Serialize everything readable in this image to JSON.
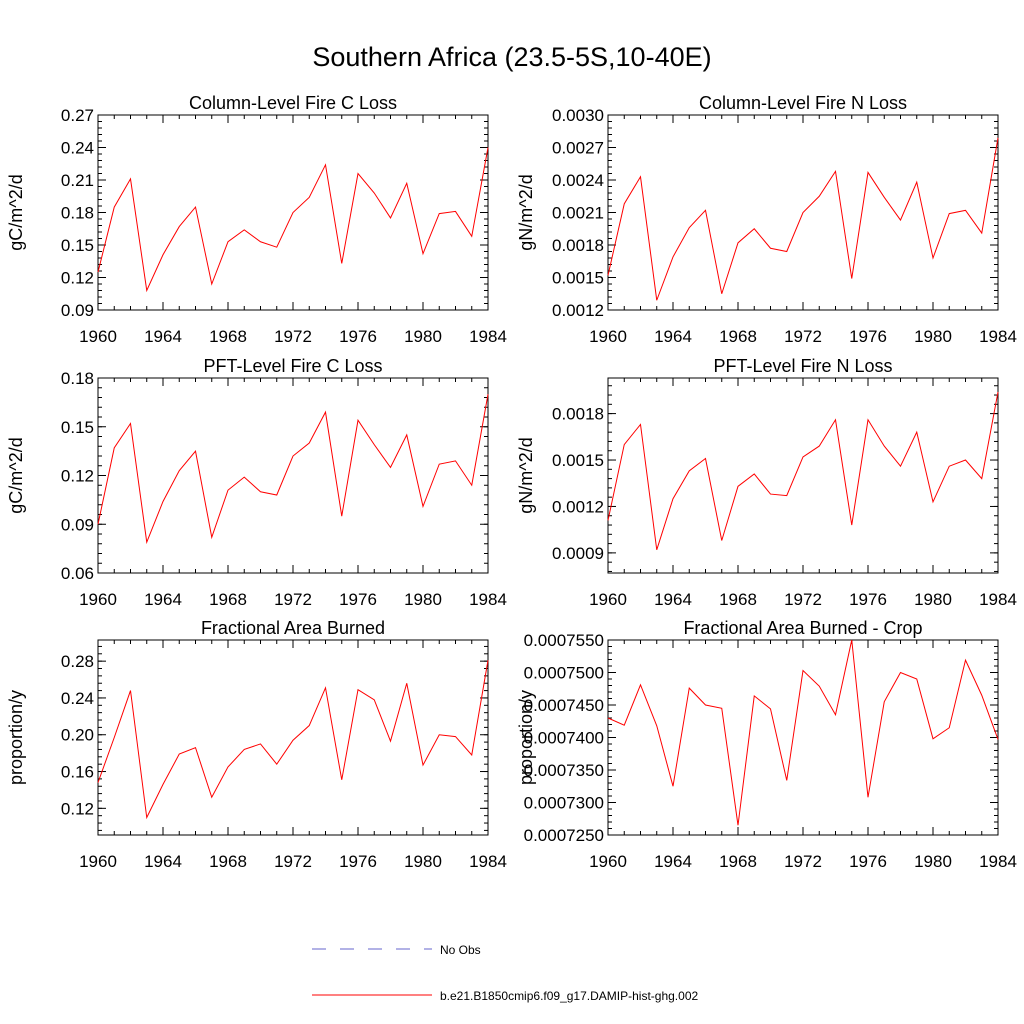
{
  "figure": {
    "title": "Southern Africa (23.5-5S,10-40E)",
    "legend": [
      {
        "label": "No Obs",
        "color": "#6666cc",
        "style": "dashed"
      },
      {
        "label": "b.e21.B1850cmip6.f09_g17.DAMIP-hist-ghg.002",
        "color": "#ff0000",
        "style": "solid"
      }
    ]
  },
  "chart_data": [
    {
      "type": "line",
      "title": "Column-Level Fire C Loss",
      "ylabel": "gC/m^2/d",
      "xlim": [
        1960,
        1984
      ],
      "ylim": [
        0.09,
        0.27
      ],
      "xticks": [
        "1960",
        "1964",
        "1968",
        "1972",
        "1976",
        "1980",
        "1984"
      ],
      "yticks": [
        0.09,
        0.12,
        0.15,
        0.18,
        0.21,
        0.24,
        0.27
      ],
      "ytick_labels": [
        "0.09",
        "0.12",
        "0.15",
        "0.18",
        "0.21",
        "0.24",
        "0.27"
      ],
      "grid": false,
      "series": [
        {
          "name": "b.e21.B1850cmip6.f09_g17.DAMIP-hist-ghg.002",
          "color": "#ff0000",
          "x": [
            1960,
            1961,
            1962,
            1963,
            1964,
            1965,
            1966,
            1967,
            1968,
            1969,
            1970,
            1971,
            1972,
            1973,
            1974,
            1975,
            1976,
            1977,
            1978,
            1979,
            1980,
            1981,
            1982,
            1983,
            1984
          ],
          "y": [
            0.125,
            0.185,
            0.211,
            0.108,
            0.141,
            0.167,
            0.185,
            0.114,
            0.153,
            0.164,
            0.153,
            0.148,
            0.18,
            0.194,
            0.224,
            0.133,
            0.216,
            0.198,
            0.175,
            0.207,
            0.142,
            0.179,
            0.181,
            0.158,
            0.24
          ]
        }
      ]
    },
    {
      "type": "line",
      "title": "Column-Level Fire N Loss",
      "ylabel": "gN/m^2/d",
      "xlim": [
        1960,
        1984
      ],
      "ylim": [
        0.0012,
        0.003
      ],
      "xticks": [
        "1960",
        "1964",
        "1968",
        "1972",
        "1976",
        "1980",
        "1984"
      ],
      "yticks": [
        0.0012,
        0.0015,
        0.0018,
        0.0021,
        0.0024,
        0.0027,
        0.003
      ],
      "ytick_labels": [
        "0.0012",
        "0.0015",
        "0.0018",
        "0.0021",
        "0.0024",
        "0.0027",
        "0.0030"
      ],
      "grid": false,
      "series": [
        {
          "name": "b.e21.B1850cmip6.f09_g17.DAMIP-hist-ghg.002",
          "color": "#ff0000",
          "x": [
            1960,
            1961,
            1962,
            1963,
            1964,
            1965,
            1966,
            1967,
            1968,
            1969,
            1970,
            1971,
            1972,
            1973,
            1974,
            1975,
            1976,
            1977,
            1978,
            1979,
            1980,
            1981,
            1982,
            1983,
            1984
          ],
          "y": [
            0.00152,
            0.00218,
            0.00243,
            0.00129,
            0.00169,
            0.00196,
            0.00212,
            0.00135,
            0.00182,
            0.00195,
            0.00177,
            0.00174,
            0.0021,
            0.00225,
            0.00248,
            0.00149,
            0.00247,
            0.00224,
            0.00203,
            0.00238,
            0.00168,
            0.00209,
            0.00212,
            0.00191,
            0.00279
          ]
        }
      ]
    },
    {
      "type": "line",
      "title": "PFT-Level Fire C Loss",
      "ylabel": "gC/m^2/d",
      "xlim": [
        1960,
        1984
      ],
      "ylim": [
        0.06,
        0.18
      ],
      "xticks": [
        "1960",
        "1964",
        "1968",
        "1972",
        "1976",
        "1980",
        "1984"
      ],
      "yticks": [
        0.06,
        0.09,
        0.12,
        0.15,
        0.18
      ],
      "ytick_labels": [
        "0.06",
        "0.09",
        "0.12",
        "0.15",
        "0.18"
      ],
      "grid": false,
      "series": [
        {
          "name": "b.e21.B1850cmip6.f09_g17.DAMIP-hist-ghg.002",
          "color": "#ff0000",
          "x": [
            1960,
            1961,
            1962,
            1963,
            1964,
            1965,
            1966,
            1967,
            1968,
            1969,
            1970,
            1971,
            1972,
            1973,
            1974,
            1975,
            1976,
            1977,
            1978,
            1979,
            1980,
            1981,
            1982,
            1983,
            1984
          ],
          "y": [
            0.09,
            0.137,
            0.152,
            0.079,
            0.104,
            0.123,
            0.135,
            0.082,
            0.111,
            0.119,
            0.11,
            0.108,
            0.132,
            0.14,
            0.159,
            0.095,
            0.154,
            0.139,
            0.125,
            0.145,
            0.101,
            0.127,
            0.129,
            0.114,
            0.17
          ]
        }
      ]
    },
    {
      "type": "line",
      "title": "PFT-Level Fire N Loss",
      "ylabel": "gN/m^2/d",
      "xlim": [
        1960,
        1984
      ],
      "ylim": [
        0.00077,
        0.00203
      ],
      "xticks": [
        "1960",
        "1964",
        "1968",
        "1972",
        "1976",
        "1980",
        "1984"
      ],
      "yticks": [
        0.0009,
        0.0012,
        0.0015,
        0.0018
      ],
      "ytick_labels": [
        "0.0009",
        "0.0012",
        "0.0015",
        "0.0018"
      ],
      "grid": false,
      "series": [
        {
          "name": "b.e21.B1850cmip6.f09_g17.DAMIP-hist-ghg.002",
          "color": "#ff0000",
          "x": [
            1960,
            1961,
            1962,
            1963,
            1964,
            1965,
            1966,
            1967,
            1968,
            1969,
            1970,
            1971,
            1972,
            1973,
            1974,
            1975,
            1976,
            1977,
            1978,
            1979,
            1980,
            1981,
            1982,
            1983,
            1984
          ],
          "y": [
            0.00111,
            0.0016,
            0.00173,
            0.00092,
            0.00125,
            0.00143,
            0.00151,
            0.00098,
            0.00133,
            0.00141,
            0.00128,
            0.00127,
            0.00152,
            0.00159,
            0.00176,
            0.00108,
            0.00176,
            0.00159,
            0.00146,
            0.00168,
            0.00123,
            0.00146,
            0.0015,
            0.00138,
            0.00194
          ]
        }
      ]
    },
    {
      "type": "line",
      "title": "Fractional Area Burned",
      "ylabel": "proportion/y",
      "xlim": [
        1960,
        1984
      ],
      "ylim": [
        0.091,
        0.303
      ],
      "xticks": [
        "1960",
        "1964",
        "1968",
        "1972",
        "1976",
        "1980",
        "1984"
      ],
      "yticks": [
        0.12,
        0.16,
        0.2,
        0.24,
        0.28
      ],
      "ytick_labels": [
        "0.12",
        "0.16",
        "0.20",
        "0.24",
        "0.28"
      ],
      "grid": false,
      "series": [
        {
          "name": "b.e21.B1850cmip6.f09_g17.DAMIP-hist-ghg.002",
          "color": "#ff0000",
          "x": [
            1960,
            1961,
            1962,
            1963,
            1964,
            1965,
            1966,
            1967,
            1968,
            1969,
            1970,
            1971,
            1972,
            1973,
            1974,
            1975,
            1976,
            1977,
            1978,
            1979,
            1980,
            1981,
            1982,
            1983,
            1984
          ],
          "y": [
            0.148,
            0.197,
            0.248,
            0.11,
            0.146,
            0.179,
            0.186,
            0.132,
            0.165,
            0.184,
            0.19,
            0.168,
            0.194,
            0.21,
            0.251,
            0.151,
            0.249,
            0.238,
            0.193,
            0.256,
            0.167,
            0.2,
            0.198,
            0.178,
            0.281
          ]
        }
      ]
    },
    {
      "type": "line",
      "title": "Fractional Area Burned - Crop",
      "ylabel": "proportion/y",
      "xlim": [
        1960,
        1984
      ],
      "ylim": [
        0.000725,
        0.000755
      ],
      "xticks": [
        "1960",
        "1964",
        "1968",
        "1972",
        "1976",
        "1980",
        "1984"
      ],
      "yticks": [
        0.000725,
        0.00073,
        0.000735,
        0.00074,
        0.000745,
        0.00075,
        0.000755
      ],
      "ytick_labels": [
        "0.0007250",
        "0.0007300",
        "0.0007350",
        "0.0007400",
        "0.0007450",
        "0.0007500",
        "0.0007550"
      ],
      "grid": false,
      "series": [
        {
          "name": "b.e21.B1850cmip6.f09_g17.DAMIP-hist-ghg.002",
          "color": "#ff0000",
          "x": [
            1960,
            1961,
            1962,
            1963,
            1964,
            1965,
            1966,
            1967,
            1968,
            1969,
            1970,
            1971,
            1972,
            1973,
            1974,
            1975,
            1976,
            1977,
            1978,
            1979,
            1980,
            1981,
            1982,
            1983,
            1984
          ],
          "y": [
            0.000743,
            0.0007419,
            0.0007481,
            0.0007418,
            0.0007325,
            0.0007476,
            0.000745,
            0.0007445,
            0.0007265,
            0.0007464,
            0.0007444,
            0.0007334,
            0.0007503,
            0.0007479,
            0.0007435,
            0.000755,
            0.0007308,
            0.0007455,
            0.00075,
            0.000749,
            0.0007398,
            0.0007415,
            0.0007519,
            0.0007465,
            0.0007397
          ]
        }
      ]
    }
  ]
}
